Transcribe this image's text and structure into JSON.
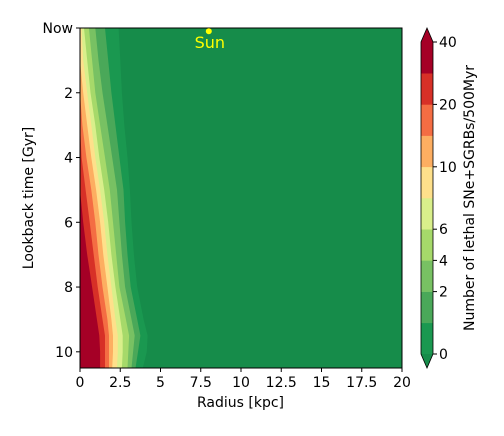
{
  "chart_data": {
    "type": "heatmap",
    "subtype": "filled-contour",
    "xlabel": "Radius [kpc]",
    "ylabel": "Lookback time [Gyr]",
    "xlim": [
      0,
      20
    ],
    "ylim": [
      10.5,
      0
    ],
    "y_inverted": true,
    "xticks": [
      0,
      2.5,
      5,
      7.5,
      10,
      12.5,
      15,
      17.5,
      20
    ],
    "xtick_labels": [
      "0",
      "2.5",
      "5",
      "7.5",
      "10",
      "12.5",
      "15",
      "17.5",
      "20"
    ],
    "yticks": [
      0,
      2,
      4,
      6,
      8,
      10
    ],
    "ytick_labels": [
      "Now",
      "2",
      "4",
      "6",
      "8",
      "10"
    ],
    "colorbar": {
      "label": "Number of lethal SNe+SGRBs/500Myr",
      "levels": [
        0,
        1,
        2,
        4,
        6,
        8,
        10,
        15,
        20,
        30,
        40
      ],
      "tick_values": [
        0,
        2,
        4,
        6,
        10,
        20,
        40
      ],
      "tick_labels": [
        "0",
        "2",
        "4",
        "6",
        "10",
        "20",
        "40"
      ],
      "colors": [
        "#1a9850",
        "#4aa859",
        "#78c163",
        "#a6d96a",
        "#d9ef8b",
        "#fee08b",
        "#fdae61",
        "#f46d43",
        "#d73027",
        "#a50026"
      ],
      "extend": "both",
      "under_color": "#168c4a",
      "over_color": "#a50026"
    },
    "contour_boundaries": {
      "description": "radius (kpc) where the count crosses each level, per lookback time (Gyr)",
      "times": [
        0,
        1,
        2,
        3,
        4,
        5,
        6,
        7,
        8,
        9,
        9.5,
        10,
        10.5
      ],
      "levels": {
        "0": [
          2.4,
          2.5,
          2.6,
          2.75,
          2.95,
          3.1,
          3.2,
          3.35,
          3.55,
          3.95,
          4.2,
          4.15,
          3.9
        ],
        "1": [
          1.55,
          1.75,
          1.95,
          2.2,
          2.45,
          2.7,
          2.8,
          2.95,
          3.15,
          3.55,
          3.75,
          3.6,
          3.45
        ],
        "2": [
          0.95,
          1.15,
          1.4,
          1.7,
          2.0,
          2.3,
          2.45,
          2.6,
          2.8,
          3.2,
          3.4,
          3.3,
          3.2
        ],
        "4": [
          0.55,
          0.75,
          0.95,
          1.25,
          1.55,
          1.85,
          2.05,
          2.25,
          2.45,
          2.85,
          3.05,
          3.0,
          2.95
        ],
        "6": [
          0.25,
          0.45,
          0.65,
          0.95,
          1.2,
          1.5,
          1.75,
          1.95,
          2.2,
          2.5,
          2.65,
          2.65,
          2.6
        ],
        "8": [
          0.1,
          0.2,
          0.45,
          0.7,
          0.95,
          1.25,
          1.5,
          1.7,
          1.95,
          2.2,
          2.35,
          2.35,
          2.3
        ],
        "10": [
          0,
          0,
          0.2,
          0.45,
          0.7,
          1.0,
          1.25,
          1.45,
          1.7,
          1.95,
          2.05,
          2.05,
          2.0
        ],
        "15": [
          0,
          0,
          0,
          0.15,
          0.4,
          0.7,
          0.95,
          1.15,
          1.4,
          1.7,
          1.8,
          1.8,
          1.8
        ],
        "20": [
          0,
          0,
          0,
          0,
          0.1,
          0.35,
          0.6,
          0.85,
          1.1,
          1.4,
          1.55,
          1.55,
          1.55
        ],
        "30": [
          0,
          0,
          0,
          0,
          0,
          0,
          0.2,
          0.45,
          0.75,
          1.05,
          1.2,
          1.25,
          1.25
        ]
      }
    },
    "annotations": [
      {
        "text": "Sun",
        "marker_x": 8,
        "marker_y": 0.1,
        "color": "#ffff00"
      }
    ]
  }
}
